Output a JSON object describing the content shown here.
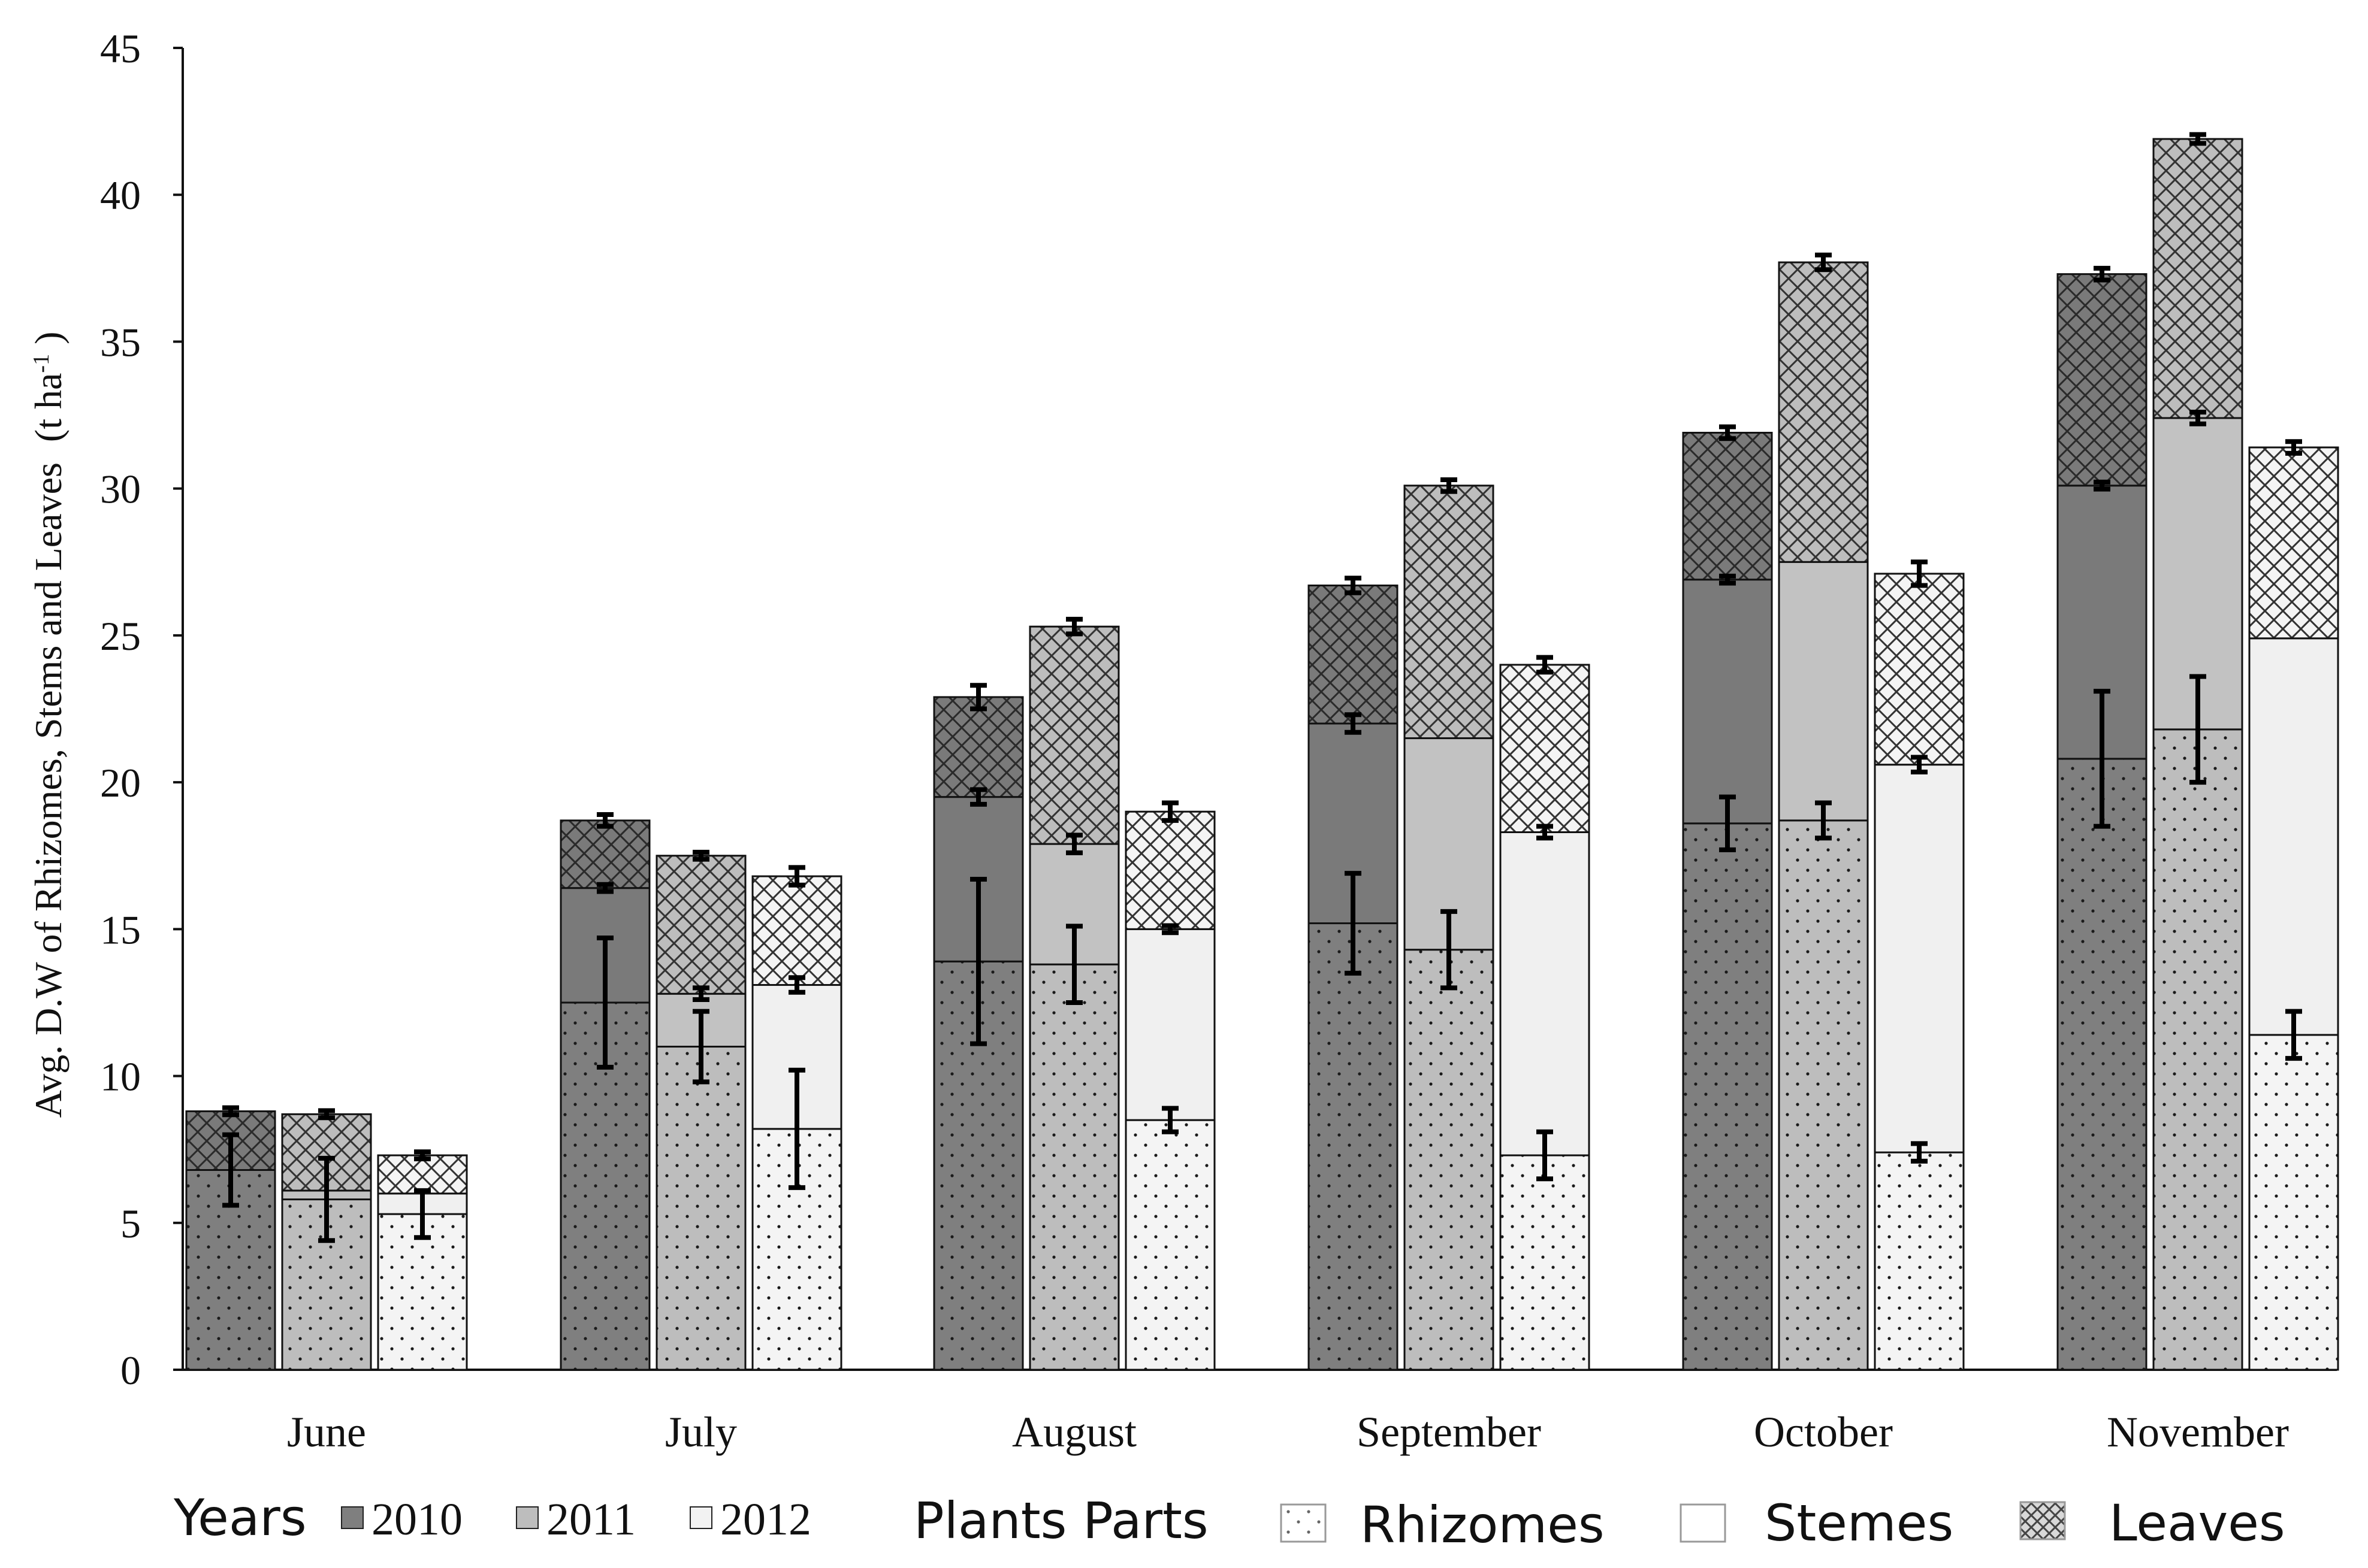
{
  "chart_data": {
    "type": "bar",
    "stacked": true,
    "ylabel": "Avg. D.W of Rhizomes, Stems and Leaves (t ha⁻¹ )",
    "ylabel_main": "Avg. D.W of Rhizomes, Stems and Leaves",
    "ylabel_unit_prefix": "(t ha",
    "ylabel_unit_sup": "-1",
    "ylabel_unit_suffix": " )",
    "ylim": [
      0,
      45
    ],
    "yticks": [
      0,
      5,
      10,
      15,
      20,
      25,
      30,
      35,
      40,
      45
    ],
    "categories": [
      "June",
      "July",
      "August",
      "September",
      "October",
      "November"
    ],
    "years": [
      "2010",
      "2011",
      "2012"
    ],
    "parts": [
      "Rhizomes",
      "Stemes",
      "Leaves"
    ],
    "series": [
      {
        "name": "2010",
        "rhizomes": [
          6.8,
          12.5,
          13.9,
          15.2,
          18.6,
          20.8
        ],
        "stems": [
          6.8,
          16.4,
          19.5,
          22.0,
          26.9,
          30.1
        ],
        "total": [
          8.8,
          18.7,
          22.9,
          26.7,
          31.9,
          37.3
        ],
        "err_rhizomes": [
          1.2,
          2.2,
          2.8,
          1.7,
          0.9,
          2.3
        ],
        "err_stems": [
          0.0,
          0.1,
          0.25,
          0.3,
          0.1,
          0.1
        ],
        "err_total": [
          0.0,
          0.2,
          0.4,
          0.25,
          0.2,
          0.2
        ]
      },
      {
        "name": "2011",
        "rhizomes": [
          5.8,
          11.0,
          13.8,
          14.3,
          18.7,
          21.8
        ],
        "stems": [
          6.1,
          12.8,
          17.9,
          21.5,
          27.5,
          32.4
        ],
        "total": [
          8.7,
          17.5,
          25.3,
          30.1,
          37.7,
          41.9
        ],
        "err_rhizomes": [
          1.4,
          1.2,
          1.3,
          1.3,
          0.6,
          1.8
        ],
        "err_stems": [
          0.0,
          0.2,
          0.3,
          0.0,
          0.0,
          0.2
        ],
        "err_total": [
          0.0,
          0.1,
          0.25,
          0.2,
          0.25,
          0.15
        ]
      },
      {
        "name": "2012",
        "rhizomes": [
          5.3,
          8.2,
          8.5,
          7.3,
          7.4,
          11.4
        ],
        "stems": [
          6.0,
          13.1,
          15.0,
          18.3,
          20.6,
          24.9
        ],
        "total": [
          7.3,
          16.8,
          19.0,
          24.0,
          27.1,
          31.4
        ],
        "err_rhizomes": [
          0.8,
          2.0,
          0.4,
          0.8,
          0.3,
          0.8
        ],
        "err_stems": [
          0.0,
          0.25,
          0.1,
          0.2,
          0.25,
          0.0
        ],
        "err_total": [
          0.1,
          0.3,
          0.3,
          0.25,
          0.4,
          0.2
        ]
      }
    ],
    "colors": {
      "2010": "#7f7f7f",
      "2011": "#bdbdbd",
      "2012": "#f2f2f2",
      "2010_stems": "#7a7a7a",
      "2011_stems": "#c2c2c2",
      "2012_stems": "#f0f0f0"
    },
    "legend": {
      "years_label": "Years",
      "parts_label": "Plants Parts",
      "placement": "bottom"
    }
  }
}
